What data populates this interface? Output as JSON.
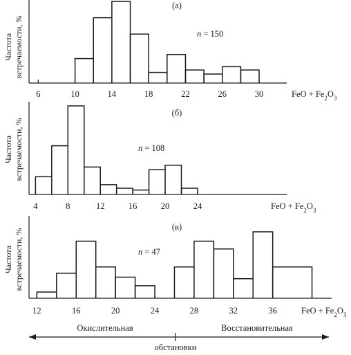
{
  "chart_data": [
    {
      "type": "bar",
      "panel_label": "(а)",
      "ylabel": "Частота встречаемости, %",
      "xlabel": "FeO + Fe2O3",
      "annotation": "n = 150",
      "xlim": [
        5,
        33
      ],
      "ylim": [
        0,
        100
      ],
      "xticks": [
        6,
        10,
        14,
        18,
        22,
        26,
        30
      ],
      "bins": [
        {
          "x0": 10,
          "x1": 12,
          "value": 30
        },
        {
          "x0": 12,
          "x1": 14,
          "value": 80
        },
        {
          "x0": 14,
          "x1": 16,
          "value": 100
        },
        {
          "x0": 16,
          "x1": 18,
          "value": 60
        },
        {
          "x0": 18,
          "x1": 20,
          "value": 13
        },
        {
          "x0": 20,
          "x1": 22,
          "value": 35
        },
        {
          "x0": 22,
          "x1": 24,
          "value": 16
        },
        {
          "x0": 24,
          "x1": 26,
          "value": 11
        },
        {
          "x0": 26,
          "x1": 28,
          "value": 20
        },
        {
          "x0": 28,
          "x1": 30,
          "value": 16
        }
      ]
    },
    {
      "type": "bar",
      "panel_label": "(б)",
      "ylabel": "Частота встречаемости, %",
      "xlabel": "FeO + Fe2O3",
      "annotation": "n = 108",
      "xlim": [
        3.2,
        35
      ],
      "ylim": [
        0,
        100
      ],
      "xticks": [
        4,
        8,
        12,
        16,
        20,
        24
      ],
      "bins": [
        {
          "x0": 4,
          "x1": 6,
          "value": 20
        },
        {
          "x0": 6,
          "x1": 8,
          "value": 55
        },
        {
          "x0": 8,
          "x1": 10,
          "value": 100
        },
        {
          "x0": 10,
          "x1": 12,
          "value": 31
        },
        {
          "x0": 12,
          "x1": 14,
          "value": 11
        },
        {
          "x0": 14,
          "x1": 16,
          "value": 7
        },
        {
          "x0": 16,
          "x1": 18,
          "value": 5
        },
        {
          "x0": 18,
          "x1": 20,
          "value": 28
        },
        {
          "x0": 20,
          "x1": 22,
          "value": 33
        },
        {
          "x0": 22,
          "x1": 24,
          "value": 7
        }
      ]
    },
    {
      "type": "bar",
      "panel_label": "(в)",
      "ylabel": "Частота встречаемости, %",
      "xlabel": "FeO + Fe2O3",
      "annotation": "n = 47",
      "xlim": [
        11.2,
        42
      ],
      "ylim": [
        0,
        100
      ],
      "xticks": [
        12,
        16,
        20,
        24,
        28,
        32,
        36
      ],
      "bins": [
        {
          "x0": 12,
          "x1": 14,
          "value": 8
        },
        {
          "x0": 14,
          "x1": 16,
          "value": 32
        },
        {
          "x0": 16,
          "x1": 18,
          "value": 73
        },
        {
          "x0": 18,
          "x1": 20,
          "value": 40
        },
        {
          "x0": 20,
          "x1": 22,
          "value": 27
        },
        {
          "x0": 22,
          "x1": 24,
          "value": 16
        },
        {
          "x0": 26,
          "x1": 28,
          "value": 40
        },
        {
          "x0": 28,
          "x1": 30,
          "value": 73
        },
        {
          "x0": 30,
          "x1": 32,
          "value": 63
        },
        {
          "x0": 32,
          "x1": 34,
          "value": 25
        },
        {
          "x0": 34,
          "x1": 36,
          "value": 85
        },
        {
          "x0": 36,
          "x1": 40,
          "value": 40
        }
      ]
    }
  ],
  "environment": {
    "left_label": "Окислительная",
    "right_label": "Восстановительная",
    "caption": "обстановки"
  }
}
